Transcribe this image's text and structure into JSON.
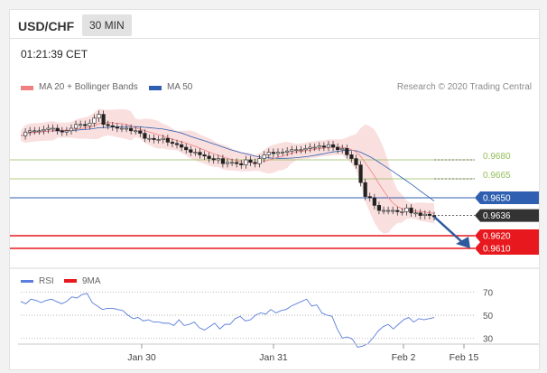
{
  "header": {
    "pair": "USD/CHF",
    "timeframe": "30 MIN",
    "time": "01:21:39 CET"
  },
  "legend": {
    "ma20": "MA 20 + Bollinger Bands",
    "ma50": "MA 50",
    "credit": "Research © 2020 Trading Central"
  },
  "rsi_legend": {
    "rsi": "RSI",
    "ma9": "9MA"
  },
  "colors": {
    "band": "#f5b8b8",
    "ma20": "#f08080",
    "ma50": "#2e5fb0",
    "red_level": "#e8191e",
    "green_level": "#94be5a",
    "blue_level": "#2e5fb0",
    "current": "#333333",
    "rsi": "#5b7ede",
    "arrow": "#2d5a9e"
  },
  "chart_data": [
    {
      "type": "line",
      "title": "USD/CHF",
      "x_ticks": [
        "Jan 30",
        "Jan 31",
        "Feb 2",
        "Feb 15"
      ],
      "ylim": [
        0.96,
        0.973
      ],
      "levels": [
        {
          "label": "0.9680",
          "value": 0.968,
          "kind": "resistance"
        },
        {
          "label": "0.9665",
          "value": 0.9665,
          "kind": "resistance"
        },
        {
          "label": "0.9650",
          "value": 0.965,
          "kind": "pivot"
        },
        {
          "label": "0.9636",
          "value": 0.9636,
          "kind": "current"
        },
        {
          "label": "0.9620",
          "value": 0.962,
          "kind": "support"
        },
        {
          "label": "0.9610",
          "value": 0.961,
          "kind": "support"
        }
      ],
      "series": [
        {
          "values": [
            0.9699,
            0.9702,
            0.9703,
            0.9703,
            0.9703,
            0.9704,
            0.9705,
            0.9705,
            0.9703,
            0.9702,
            0.9703,
            0.9705,
            0.9708,
            0.9708,
            0.9707,
            0.9709,
            0.9713,
            0.9716,
            0.9708,
            0.9707,
            0.9706,
            0.9705,
            0.9705,
            0.9705,
            0.9703,
            0.9703,
            0.9701,
            0.9697,
            0.9697,
            0.9696,
            0.9696,
            0.9697,
            0.9694,
            0.9693,
            0.9692,
            0.969,
            0.9688,
            0.9686,
            0.9686,
            0.9684,
            0.9683,
            0.9681,
            0.968,
            0.9681,
            0.9677,
            0.9678,
            0.9678,
            0.9677,
            0.9676,
            0.968,
            0.9678,
            0.9677,
            0.9681,
            0.9684,
            0.9686,
            0.9685,
            0.9686,
            0.9686,
            0.9687,
            0.9688,
            0.9688,
            0.9688,
            0.9689,
            0.969,
            0.969,
            0.9691,
            0.969,
            0.9692,
            0.969,
            0.9688,
            0.9689,
            0.9684,
            0.9681,
            0.9676,
            0.9662,
            0.9651,
            0.965,
            0.9644,
            0.964,
            0.964,
            0.964,
            0.964,
            0.9639,
            0.9639,
            0.9642,
            0.9638,
            0.9638,
            0.9636,
            0.9637,
            0.9636,
            0.9635
          ]
        }
      ]
    },
    {
      "type": "line",
      "title": "RSI",
      "ylim": [
        20,
        80
      ],
      "y_ticks": [
        70,
        50,
        30
      ],
      "series": [
        {
          "values": [
            62,
            60,
            64,
            63,
            61,
            63,
            64,
            62,
            60,
            62,
            66,
            65,
            68,
            69,
            61,
            58,
            55,
            56,
            56,
            55,
            54,
            50,
            47,
            48,
            45,
            46,
            44,
            44,
            43,
            43,
            41,
            46,
            41,
            42,
            44,
            39,
            37,
            40,
            43,
            38,
            42,
            42,
            47,
            49,
            45,
            46,
            50,
            52,
            51,
            55,
            52,
            54,
            55,
            58,
            60,
            62,
            64,
            58,
            59,
            52,
            50,
            49,
            38,
            30,
            31,
            29,
            22,
            23,
            25,
            30,
            36,
            40,
            42,
            38,
            42,
            46,
            48,
            44,
            47,
            46,
            47,
            48
          ]
        }
      ]
    }
  ]
}
